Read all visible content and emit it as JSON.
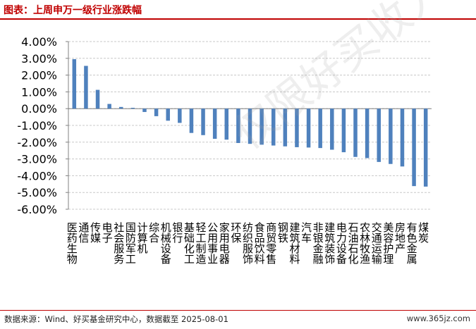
{
  "header": {
    "title": "图表：上周申万一级行业涨跌幅"
  },
  "footer": {
    "source": "数据来源：Wind、好买基金研究中心，数据截至 2025-08-01",
    "site": "www.365jz.com"
  },
  "watermark": "仅限好买收入人使用",
  "colors": {
    "bar": "#4f81bd",
    "title": "#c00000",
    "grid": "#c8c8c8",
    "axis": "#808080"
  },
  "chart_data": {
    "type": "bar",
    "title": "上周申万一级行业涨跌幅",
    "ylim": [
      -6,
      4
    ],
    "yticks": [
      "4.00%",
      "3.00%",
      "2.00%",
      "1.00%",
      "0.00%",
      "-1.00%",
      "-2.00%",
      "-3.00%",
      "-4.00%",
      "-5.00%",
      "-6.00%"
    ],
    "grid": true,
    "categories": [
      "医药生物",
      "通信",
      "传媒",
      "电子",
      "社会服务",
      "国防军工",
      "计算机",
      "综合",
      "机械设备",
      "银行",
      "基础化工",
      "轻工制造",
      "公用事业",
      "家用电器",
      "环保",
      "纺织服饰",
      "食品饮料",
      "商贸零售",
      "钢铁",
      "建筑材料",
      "汽车",
      "非银金融",
      "建筑装饰",
      "电力设备",
      "石油石化",
      "农林牧渔",
      "交通运输",
      "美容护理",
      "房地产",
      "有色金属",
      "煤炭"
    ],
    "values": [
      2.95,
      2.55,
      1.12,
      0.28,
      0.1,
      0.05,
      -0.2,
      -0.45,
      -0.72,
      -0.85,
      -1.45,
      -1.58,
      -1.8,
      -1.85,
      -2.05,
      -2.1,
      -2.15,
      -2.2,
      -2.25,
      -2.3,
      -2.32,
      -2.35,
      -2.45,
      -2.6,
      -2.88,
      -2.95,
      -3.18,
      -3.3,
      -3.45,
      -4.62,
      -4.65
    ]
  }
}
